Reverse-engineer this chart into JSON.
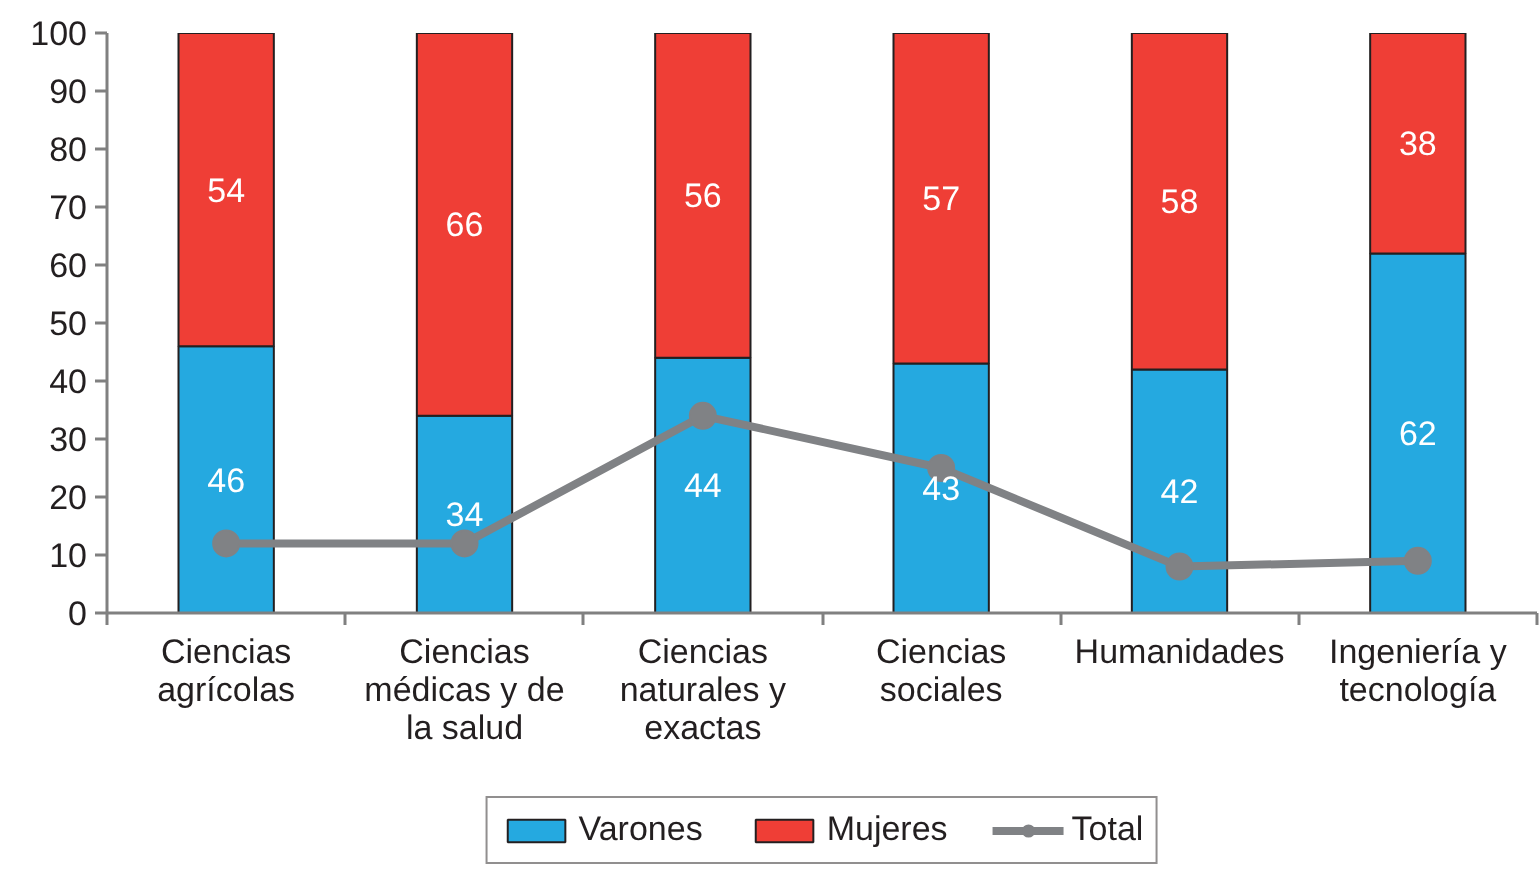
{
  "chart_data": {
    "type": "bar",
    "stacked": true,
    "categories": [
      "Ciencias agrícolas",
      "Ciencias médicas y de la salud",
      "Ciencias naturales y exactas",
      "Ciencias sociales",
      "Humanidades",
      "Ingeniería y tecnología"
    ],
    "series": [
      {
        "name": "Varones",
        "color": "#25a9e0",
        "values": [
          46,
          34,
          44,
          43,
          42,
          62
        ],
        "value_labels": [
          "46",
          "34",
          "44",
          "43",
          "42",
          "62"
        ]
      },
      {
        "name": "Mujeres",
        "color": "#ef3e36",
        "values": [
          54,
          66,
          56,
          57,
          58,
          38
        ],
        "value_labels": [
          "54",
          "66",
          "56",
          "57",
          "58",
          "38"
        ]
      },
      {
        "name": "Total",
        "type": "line",
        "color": "#808285",
        "marker": "circle",
        "values": [
          12,
          12,
          34,
          25,
          8,
          9
        ]
      }
    ],
    "ylim": [
      0,
      100
    ],
    "yticks": [
      0,
      10,
      20,
      30,
      40,
      50,
      60,
      70,
      80,
      90,
      100
    ],
    "grid": false,
    "legend": "bottom"
  }
}
